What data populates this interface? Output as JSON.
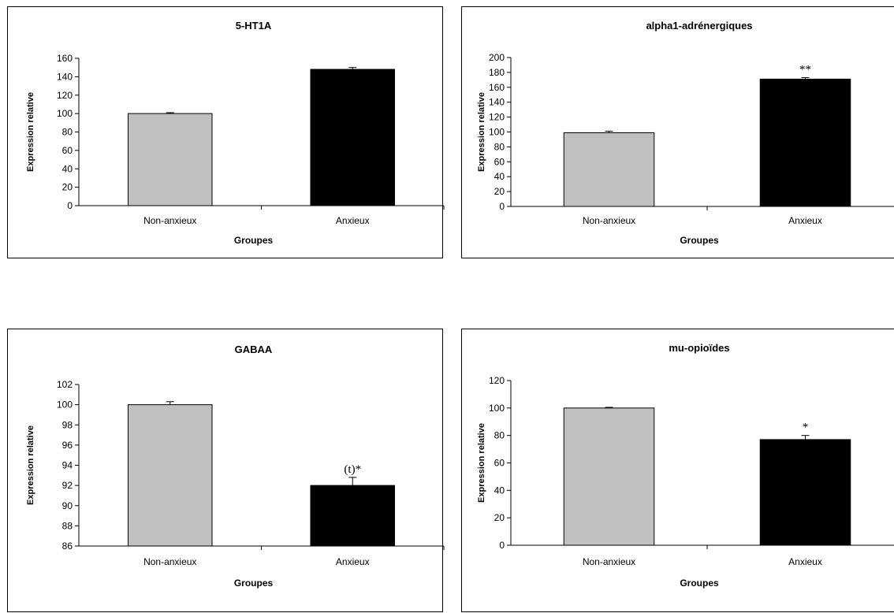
{
  "chart_data": [
    {
      "type": "bar",
      "title": "5-HT1A",
      "xlabel": "Groupes",
      "ylabel": "Expression relative",
      "categories": [
        "Non-anxieux",
        "Anxieux"
      ],
      "values": [
        100,
        148
      ],
      "errors": [
        1,
        2
      ],
      "annotations": [
        "",
        ""
      ],
      "ylim": [
        0,
        160
      ],
      "ystep": 20,
      "colors": [
        "#c0c0c0",
        "#000000"
      ]
    },
    {
      "type": "bar",
      "title": "alpha1-adrénergiques",
      "xlabel": "Groupes",
      "ylabel": "Expression relative",
      "categories": [
        "Non-anxieux",
        "Anxieux"
      ],
      "values": [
        99,
        171
      ],
      "errors": [
        2,
        2
      ],
      "annotations": [
        "",
        "**"
      ],
      "ylim": [
        0,
        200
      ],
      "ystep": 20,
      "colors": [
        "#c0c0c0",
        "#000000"
      ]
    },
    {
      "type": "bar",
      "title": "GABAA",
      "xlabel": "Groupes",
      "ylabel": "Expression relative",
      "categories": [
        "Non-anxieux",
        "Anxieux"
      ],
      "values": [
        100,
        92
      ],
      "errors": [
        0.3,
        0.8
      ],
      "annotations": [
        "",
        "(t)*"
      ],
      "ylim": [
        86,
        102
      ],
      "ystep": 2,
      "colors": [
        "#c0c0c0",
        "#000000"
      ]
    },
    {
      "type": "bar",
      "title": "mu-opioïdes",
      "xlabel": "Groupes",
      "ylabel": "Expression relative",
      "categories": [
        "Non-anxieux",
        "Anxieux"
      ],
      "values": [
        100,
        77
      ],
      "errors": [
        0.5,
        3
      ],
      "annotations": [
        "",
        "*"
      ],
      "ylim": [
        0,
        120
      ],
      "ystep": 20,
      "colors": [
        "#c0c0c0",
        "#000000"
      ]
    }
  ]
}
